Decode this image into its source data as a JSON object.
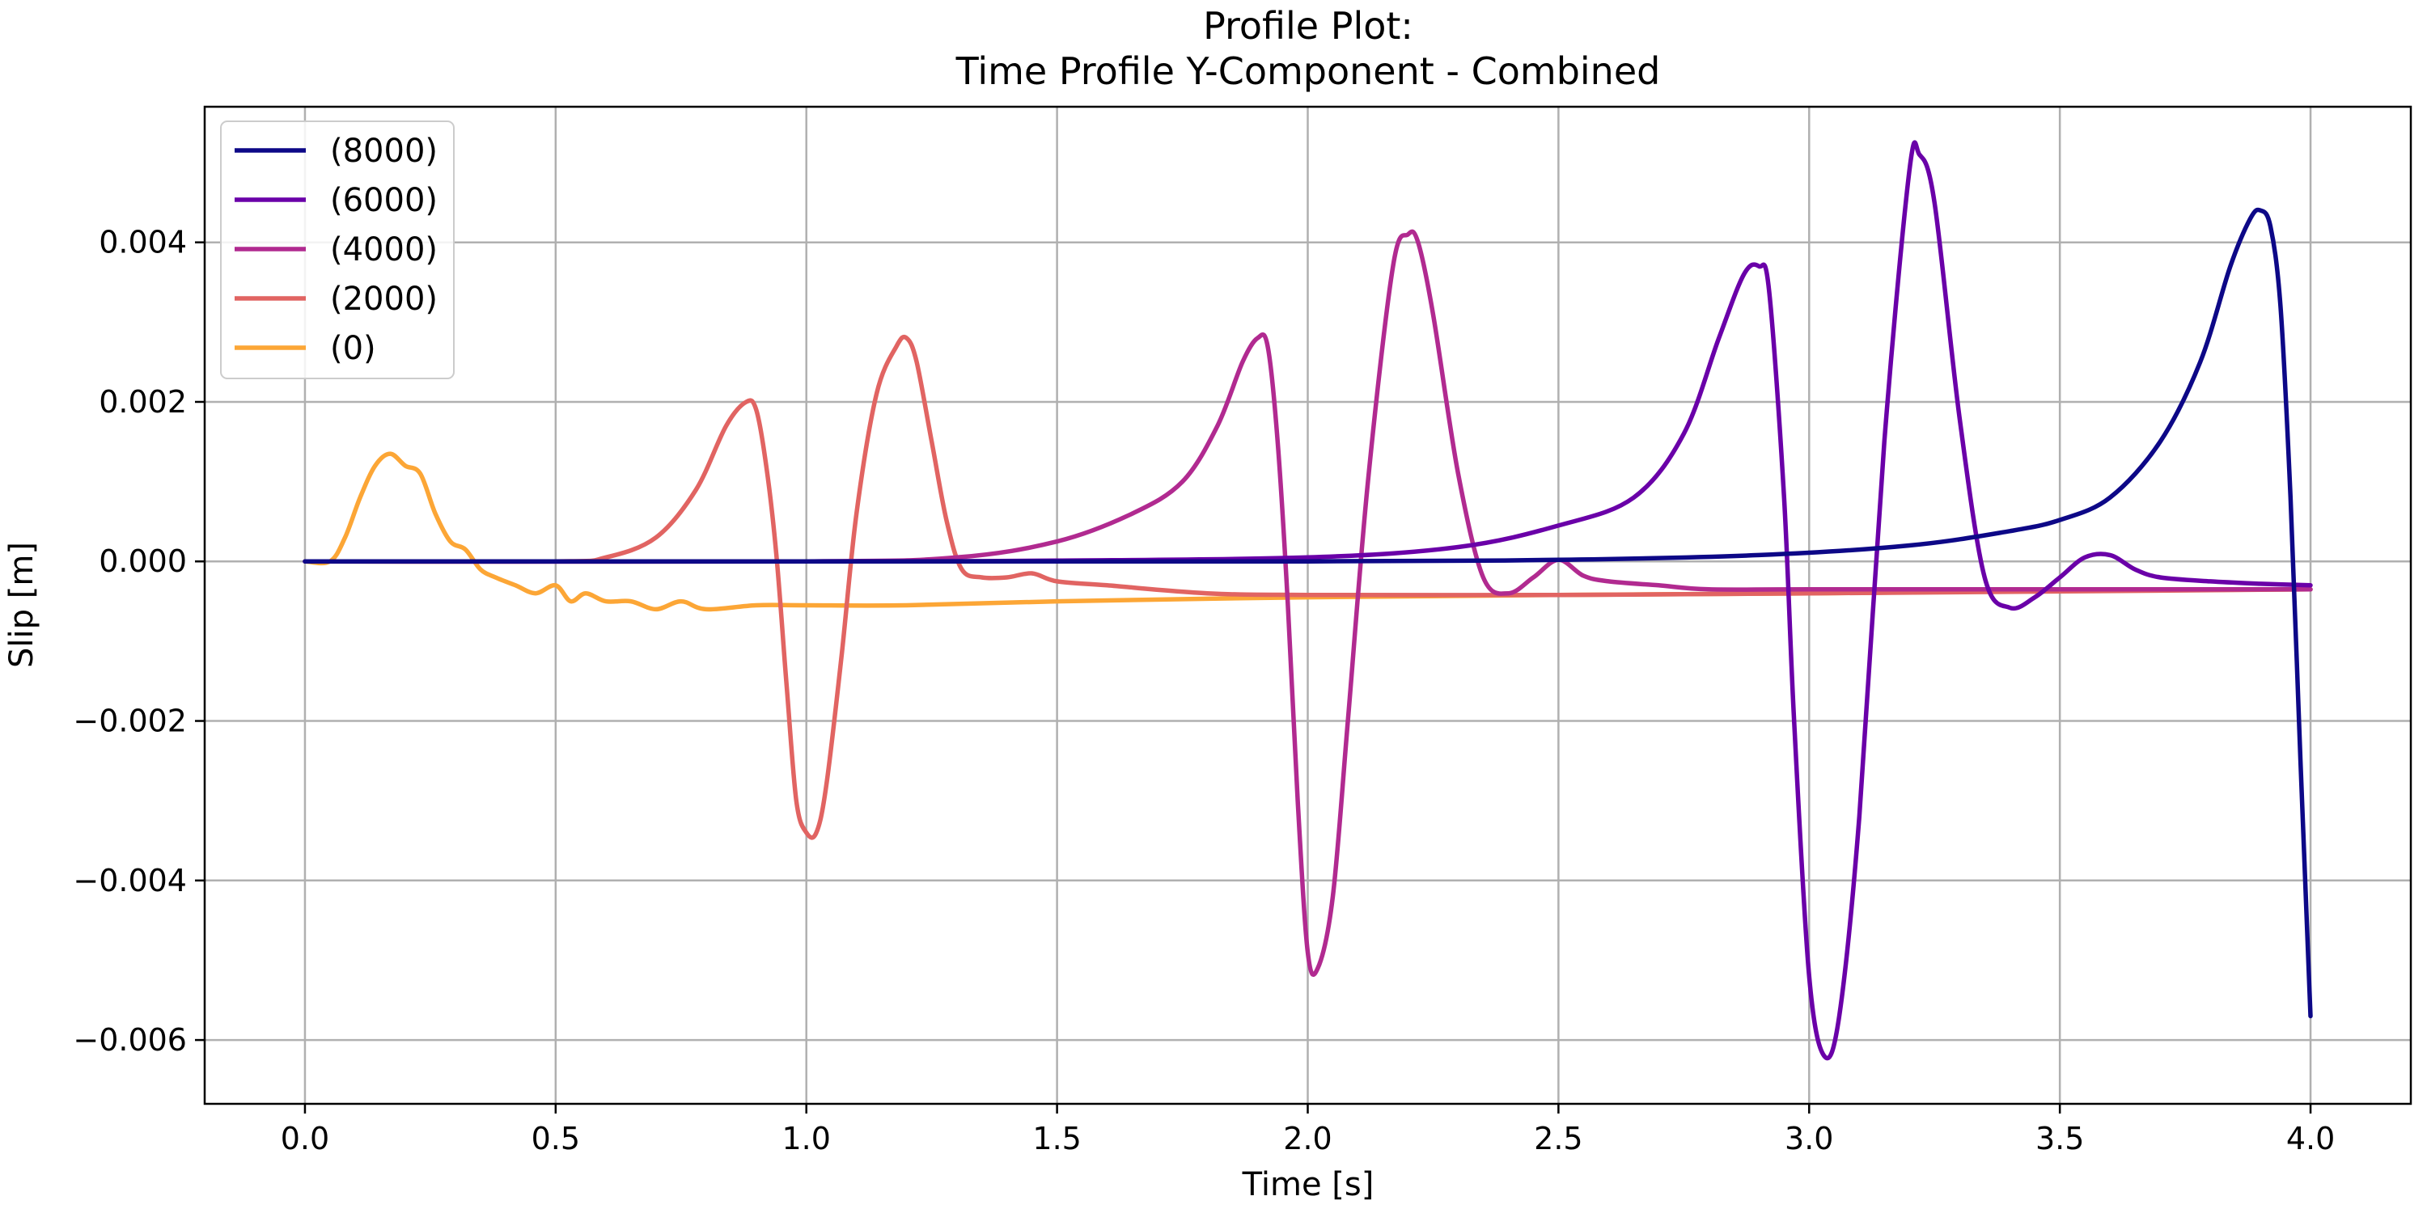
{
  "chart_data": {
    "type": "line",
    "title": "Profile Plot:",
    "subtitle": "Time Profile Y-Component - Combined",
    "xlabel": "Time [s]",
    "ylabel": "Slip [m]",
    "xlim": [
      -0.2,
      4.2
    ],
    "ylim": [
      -0.0068,
      0.0057
    ],
    "xticks": [
      0.0,
      0.5,
      1.0,
      1.5,
      2.0,
      2.5,
      3.0,
      3.5,
      4.0
    ],
    "xtick_labels": [
      "0.0",
      "0.5",
      "1.0",
      "1.5",
      "2.0",
      "2.5",
      "3.0",
      "3.5",
      "4.0"
    ],
    "yticks": [
      -0.006,
      -0.004,
      -0.002,
      0.0,
      0.002,
      0.004
    ],
    "ytick_labels": [
      "−0.006",
      "−0.004",
      "−0.002",
      "0.000",
      "0.002",
      "0.004"
    ],
    "grid": true,
    "legend_position": "top-left",
    "series": [
      {
        "name": "(8000)",
        "color": "#0d0887",
        "x": [
          0.0,
          1.0,
          2.0,
          2.5,
          2.9,
          3.2,
          3.4,
          3.5,
          3.6,
          3.7,
          3.78,
          3.84,
          3.88,
          3.9,
          3.92,
          3.94,
          3.96,
          3.98,
          4.0
        ],
        "y": [
          0.0,
          0.0,
          0.0,
          2e-05,
          8e-05,
          0.0002,
          0.00038,
          0.00052,
          0.0008,
          0.0015,
          0.0025,
          0.0037,
          0.0043,
          0.0044,
          0.0042,
          0.0032,
          0.0008,
          -0.0025,
          -0.0057
        ]
      },
      {
        "name": "(6000)",
        "color": "#6a00a8",
        "x": [
          0.0,
          1.0,
          1.5,
          2.0,
          2.3,
          2.5,
          2.65,
          2.75,
          2.82,
          2.87,
          2.9,
          2.92,
          2.95,
          2.97,
          3.0,
          3.03,
          3.06,
          3.1,
          3.15,
          3.2,
          3.22,
          3.25,
          3.3,
          3.35,
          3.4,
          3.45,
          3.5,
          3.55,
          3.6,
          3.65,
          3.7,
          3.8,
          3.9,
          4.0
        ],
        "y": [
          0.0,
          0.0,
          1e-05,
          5e-05,
          0.00018,
          0.00045,
          0.0008,
          0.0016,
          0.0028,
          0.0036,
          0.0037,
          0.0034,
          0.0008,
          -0.002,
          -0.0052,
          -0.0062,
          -0.0057,
          -0.0032,
          0.0015,
          0.0049,
          0.0051,
          0.0045,
          0.0018,
          -0.0002,
          -0.00058,
          -0.00045,
          -0.0002,
          5e-05,
          8e-05,
          -0.0001,
          -0.0002,
          -0.00025,
          -0.00028,
          -0.0003
        ]
      },
      {
        "name": "(4000)",
        "color": "#b12a90",
        "x": [
          0.0,
          1.0,
          1.3,
          1.5,
          1.65,
          1.75,
          1.82,
          1.87,
          1.9,
          1.92,
          1.94,
          1.96,
          1.98,
          2.0,
          2.02,
          2.05,
          2.08,
          2.12,
          2.17,
          2.2,
          2.22,
          2.25,
          2.3,
          2.35,
          2.4,
          2.45,
          2.5,
          2.55,
          2.6,
          2.7,
          2.8,
          3.0,
          3.5,
          4.0
        ],
        "y": [
          0.0,
          0.0,
          5e-05,
          0.00025,
          0.0006,
          0.001,
          0.0017,
          0.0025,
          0.0028,
          0.0027,
          0.0015,
          -0.0005,
          -0.003,
          -0.0049,
          -0.0051,
          -0.0042,
          -0.002,
          0.001,
          0.0037,
          0.0041,
          0.004,
          0.0031,
          0.0011,
          -0.0002,
          -0.0004,
          -0.0002,
          2e-05,
          -0.00018,
          -0.00025,
          -0.0003,
          -0.00035,
          -0.00035,
          -0.00035,
          -0.00035
        ]
      },
      {
        "name": "(2000)",
        "color": "#e16462",
        "x": [
          0.0,
          0.5,
          0.6,
          0.7,
          0.78,
          0.84,
          0.88,
          0.9,
          0.92,
          0.94,
          0.96,
          0.98,
          1.0,
          1.02,
          1.04,
          1.07,
          1.1,
          1.14,
          1.18,
          1.2,
          1.22,
          1.25,
          1.28,
          1.31,
          1.35,
          1.4,
          1.45,
          1.5,
          1.6,
          1.8,
          2.0,
          2.5,
          3.0,
          4.0
        ],
        "y": [
          0.0,
          0.0,
          5e-05,
          0.0003,
          0.0009,
          0.0017,
          0.002,
          0.0019,
          0.0012,
          0.0001,
          -0.0015,
          -0.003,
          -0.0034,
          -0.0034,
          -0.0028,
          -0.0012,
          0.0006,
          0.0021,
          0.0027,
          0.0028,
          0.0025,
          0.0015,
          0.0005,
          -0.0001,
          -0.0002,
          -0.0002,
          -0.00015,
          -0.00025,
          -0.0003,
          -0.0004,
          -0.00042,
          -0.00042,
          -0.0004,
          -0.00035
        ]
      },
      {
        "name": "(0)",
        "color": "#fca636",
        "x": [
          0.0,
          0.05,
          0.08,
          0.11,
          0.14,
          0.17,
          0.2,
          0.23,
          0.26,
          0.29,
          0.32,
          0.35,
          0.38,
          0.42,
          0.46,
          0.5,
          0.53,
          0.56,
          0.6,
          0.65,
          0.7,
          0.75,
          0.8,
          0.9,
          1.0,
          1.2,
          1.5,
          2.0,
          2.5,
          3.0,
          3.5,
          4.0
        ],
        "y": [
          0.0,
          0.0,
          0.0003,
          0.0008,
          0.0012,
          0.00135,
          0.0012,
          0.0011,
          0.0006,
          0.00025,
          0.00015,
          -0.0001,
          -0.0002,
          -0.0003,
          -0.0004,
          -0.0003,
          -0.0005,
          -0.0004,
          -0.0005,
          -0.0005,
          -0.0006,
          -0.0005,
          -0.0006,
          -0.00055,
          -0.00055,
          -0.00055,
          -0.0005,
          -0.00045,
          -0.00042,
          -0.0004,
          -0.00037,
          -0.00035
        ]
      }
    ]
  }
}
